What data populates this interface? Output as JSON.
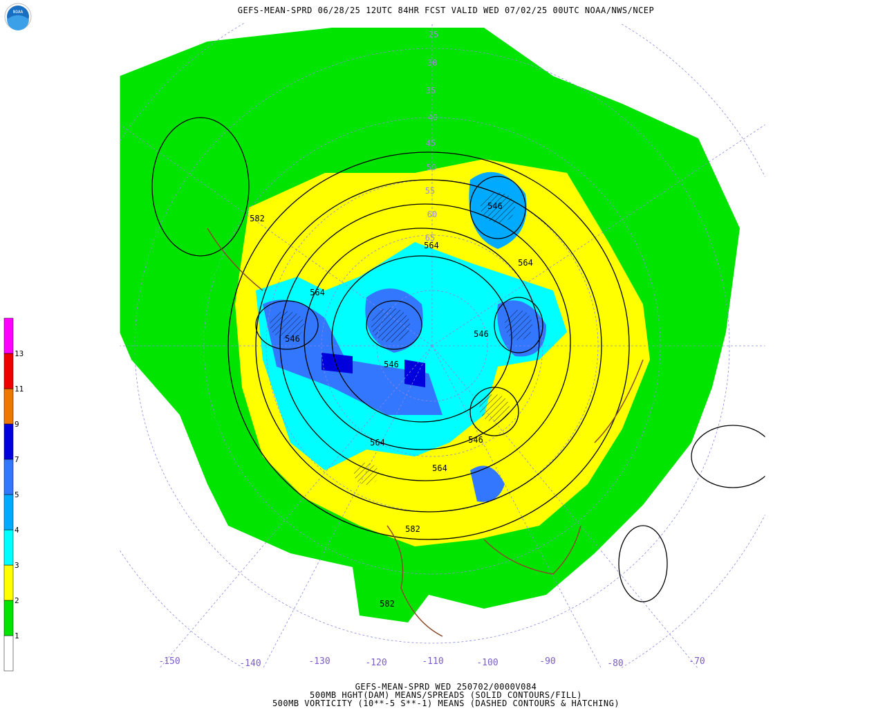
{
  "header": {
    "title": "GEFS-MEAN-SPRD 06/28/25 12UTC 84HR FCST VALID WED 07/02/25 00UTC NOAA/NWS/NCEP",
    "logo": "NOAA"
  },
  "legend": {
    "levels": [
      1,
      2,
      3,
      4,
      5,
      7,
      9,
      11,
      13
    ],
    "colors": [
      "#ffffff",
      "#00e400",
      "#ffff00",
      "#00ffff",
      "#00aaff",
      "#3377ff",
      "#0000dd",
      "#ee7700",
      "#ee0000",
      "#ff00ff"
    ]
  },
  "longitude_labels": [
    -150,
    -140,
    -130,
    -120,
    -110,
    -100,
    -90,
    -80,
    -70
  ],
  "latitude_labels": [
    25,
    30,
    35,
    40,
    45,
    50,
    55,
    60,
    65
  ],
  "contour_labels": [
    582,
    564,
    546,
    564,
    564,
    546,
    546,
    546,
    546,
    564,
    564,
    582,
    582
  ],
  "footer": {
    "lines": [
      "GEFS-MEAN-SPRD WED 250702/0000V084",
      "500MB HGHT(DAM) MEANS/SPREADS (SOLID CONTOURS/FILL)",
      "500MB VORTICITY (10**-5 S**-1) MEANS (DASHED CONTOURS & HATCHING)"
    ]
  }
}
